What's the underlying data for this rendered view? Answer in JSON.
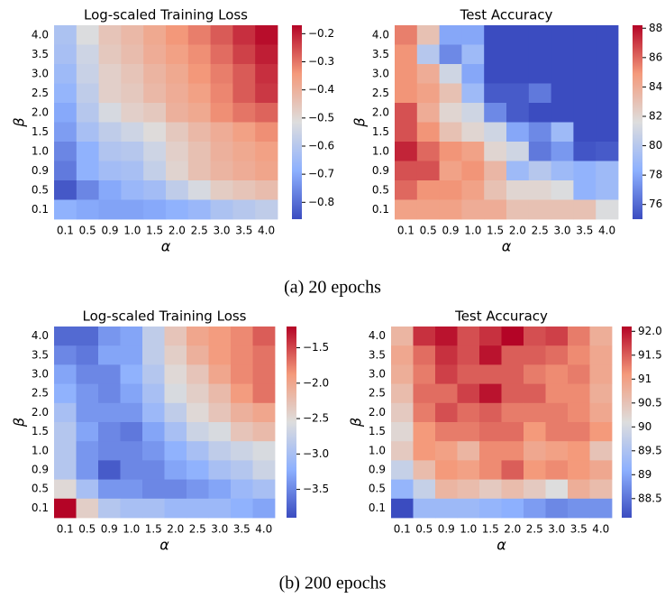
{
  "captions": [
    "(a) 20 epochs",
    "(b) 200 epochs"
  ],
  "chart_data": [
    {
      "type": "heatmap",
      "title": "Log-scaled Training Loss",
      "xlabel": "α",
      "ylabel": "β",
      "colormap": "coolwarm",
      "x_categories": [
        "0.1",
        "0.5",
        "0.9",
        "1.0",
        "1.5",
        "2.0",
        "2.5",
        "3.0",
        "3.5",
        "4.0"
      ],
      "y_categories": [
        "4.0",
        "3.5",
        "3.0",
        "2.5",
        "2.0",
        "1.5",
        "1.0",
        "0.9",
        "0.5",
        "0.1"
      ],
      "values": [
        [
          -0.62,
          -0.52,
          -0.45,
          -0.42,
          -0.38,
          -0.34,
          -0.31,
          -0.27,
          -0.22,
          -0.18
        ],
        [
          -0.63,
          -0.55,
          -0.46,
          -0.43,
          -0.39,
          -0.36,
          -0.33,
          -0.29,
          -0.24,
          -0.2
        ],
        [
          -0.65,
          -0.56,
          -0.48,
          -0.45,
          -0.41,
          -0.38,
          -0.34,
          -0.31,
          -0.27,
          -0.22
        ],
        [
          -0.67,
          -0.58,
          -0.48,
          -0.46,
          -0.42,
          -0.39,
          -0.36,
          -0.32,
          -0.27,
          -0.23
        ],
        [
          -0.7,
          -0.6,
          -0.53,
          -0.48,
          -0.46,
          -0.4,
          -0.38,
          -0.33,
          -0.3,
          -0.28
        ],
        [
          -0.72,
          -0.63,
          -0.58,
          -0.55,
          -0.51,
          -0.46,
          -0.42,
          -0.39,
          -0.36,
          -0.33
        ],
        [
          -0.76,
          -0.68,
          -0.61,
          -0.6,
          -0.55,
          -0.48,
          -0.44,
          -0.4,
          -0.38,
          -0.36
        ],
        [
          -0.78,
          -0.68,
          -0.64,
          -0.63,
          -0.57,
          -0.49,
          -0.44,
          -0.41,
          -0.39,
          -0.37
        ],
        [
          -0.84,
          -0.76,
          -0.7,
          -0.66,
          -0.64,
          -0.58,
          -0.53,
          -0.47,
          -0.45,
          -0.43
        ],
        [
          -0.68,
          -0.7,
          -0.71,
          -0.71,
          -0.7,
          -0.68,
          -0.66,
          -0.62,
          -0.6,
          -0.58
        ]
      ],
      "clim": [
        -0.86,
        -0.17
      ],
      "cticks": [
        {
          "value": -0.2,
          "label": "−0.2"
        },
        {
          "value": -0.3,
          "label": "−0.3"
        },
        {
          "value": -0.4,
          "label": "−0.4"
        },
        {
          "value": -0.5,
          "label": "−0.5"
        },
        {
          "value": -0.6,
          "label": "−0.6"
        },
        {
          "value": -0.7,
          "label": "−0.7"
        },
        {
          "value": -0.8,
          "label": "−0.8"
        }
      ]
    },
    {
      "type": "heatmap",
      "title": "Test Accuracy",
      "xlabel": "α",
      "ylabel": "β",
      "colormap": "coolwarm",
      "x_categories": [
        "0.1",
        "0.5",
        "0.9",
        "1.0",
        "1.5",
        "2.0",
        "2.5",
        "3.0",
        "3.5",
        "4.0"
      ],
      "y_categories": [
        "4.0",
        "3.5",
        "3.0",
        "2.5",
        "2.0",
        "1.5",
        "1.0",
        "0.9",
        "0.5",
        "0.1"
      ],
      "values": [
        [
          85.5,
          83,
          78,
          78,
          75,
          75,
          75,
          75,
          75,
          75
        ],
        [
          85,
          80,
          77,
          79,
          75,
          75,
          75,
          75,
          75,
          75
        ],
        [
          85,
          84,
          81,
          78,
          75,
          75,
          75,
          75,
          75,
          75
        ],
        [
          85,
          84.5,
          83,
          79,
          75.5,
          75.5,
          76.5,
          75,
          75,
          75
        ],
        [
          86.5,
          84,
          82,
          81,
          77,
          75.5,
          75,
          75,
          75,
          75
        ],
        [
          86.5,
          85,
          83,
          82,
          81,
          78,
          77,
          79,
          75,
          75
        ],
        [
          87.5,
          86,
          85,
          84.5,
          82,
          81,
          76.5,
          77.5,
          75.3,
          75.5
        ],
        [
          86.5,
          86.5,
          84.5,
          85,
          83.5,
          79,
          80,
          79,
          78.5,
          79
        ],
        [
          86,
          85,
          85,
          84.5,
          83,
          82,
          82,
          81.5,
          78.5,
          79
        ],
        [
          84.5,
          84.5,
          84.5,
          84,
          84,
          83,
          83,
          83,
          83,
          81.5
        ]
      ],
      "clim": [
        75,
        88.2
      ],
      "cticks": [
        76,
        78,
        80,
        82,
        84,
        86,
        88
      ]
    },
    {
      "type": "heatmap",
      "title": "Log-scaled Training Loss",
      "xlabel": "α",
      "ylabel": "β",
      "colormap": "coolwarm",
      "x_categories": [
        "0.1",
        "0.5",
        "0.9",
        "1.0",
        "1.5",
        "2.0",
        "2.5",
        "3.0",
        "3.5",
        "4.0"
      ],
      "y_categories": [
        "4.0",
        "3.5",
        "3.0",
        "2.5",
        "2.0",
        "1.5",
        "1.0",
        "0.9",
        "0.5",
        "0.1"
      ],
      "values": [
        [
          -3.7,
          -3.7,
          -3.4,
          -3.3,
          -2.8,
          -2.3,
          -2,
          -1.9,
          -1.8,
          -1.6
        ],
        [
          -3.5,
          -3.6,
          -3.3,
          -3.3,
          -2.8,
          -2.4,
          -2.1,
          -1.9,
          -1.8,
          -1.7
        ],
        [
          -3.3,
          -3.5,
          -3.5,
          -3.2,
          -2.9,
          -2.5,
          -2.3,
          -2,
          -1.8,
          -1.7
        ],
        [
          -3.2,
          -3.4,
          -3.5,
          -3.3,
          -3,
          -2.6,
          -2.4,
          -2.2,
          -1.9,
          -1.7
        ],
        [
          -3,
          -3.4,
          -3.4,
          -3.4,
          -3.1,
          -2.8,
          -2.5,
          -2.3,
          -2.1,
          -2
        ],
        [
          -2.9,
          -3.3,
          -3.5,
          -3.6,
          -3.3,
          -3,
          -2.7,
          -2.6,
          -2.3,
          -2.2
        ],
        [
          -2.9,
          -3.4,
          -3.5,
          -3.5,
          -3.4,
          -3.2,
          -3,
          -2.8,
          -2.7,
          -2.6
        ],
        [
          -2.9,
          -3.4,
          -3.8,
          -3.5,
          -3.5,
          -3.3,
          -3.2,
          -3,
          -2.9,
          -2.7
        ],
        [
          -2.5,
          -3,
          -3.4,
          -3.4,
          -3.5,
          -3.5,
          -3.4,
          -3.3,
          -3.1,
          -3
        ],
        [
          -1.2,
          -2.4,
          -2.9,
          -3,
          -3,
          -3.1,
          -3.1,
          -3.1,
          -3.2,
          -3.3
        ]
      ],
      "clim": [
        -3.9,
        -1.2
      ],
      "cticks": [
        {
          "value": -1.5,
          "label": "−1.5"
        },
        {
          "value": -2,
          "label": "−2.0"
        },
        {
          "value": -2.5,
          "label": "−2.5"
        },
        {
          "value": -3,
          "label": "−3.0"
        },
        {
          "value": -3.5,
          "label": "−3.5"
        }
      ]
    },
    {
      "type": "heatmap",
      "title": "Test Accuracy",
      "xlabel": "α",
      "ylabel": "β",
      "colormap": "coolwarm",
      "x_categories": [
        "0.1",
        "0.5",
        "0.9",
        "1.0",
        "1.5",
        "2.0",
        "2.5",
        "3.0",
        "3.5",
        "4.0"
      ],
      "y_categories": [
        "4.0",
        "3.5",
        "3.0",
        "2.5",
        "2.0",
        "1.5",
        "1.0",
        "0.9",
        "0.5",
        "0.1"
      ],
      "values": [
        [
          90.7,
          91.8,
          92,
          91.6,
          91.8,
          92.1,
          91.6,
          91.7,
          91.3,
          90.8
        ],
        [
          90.9,
          91.4,
          91.8,
          91.6,
          92,
          91.5,
          91.5,
          91.4,
          91.2,
          90.9
        ],
        [
          90.8,
          91.3,
          91.7,
          91.5,
          91.5,
          91.5,
          91.3,
          91.2,
          91.3,
          90.9
        ],
        [
          90.6,
          91.4,
          91.4,
          91.7,
          92,
          91.5,
          91.5,
          91.2,
          91.2,
          90.8
        ],
        [
          90.4,
          91.3,
          91.6,
          91.4,
          91.5,
          91.3,
          91.3,
          91.3,
          91.2,
          90.9
        ],
        [
          90.2,
          91.1,
          91.3,
          91.3,
          91.4,
          91.4,
          91.1,
          91.3,
          91.3,
          91.1
        ],
        [
          90.4,
          91.1,
          91,
          90.7,
          91.2,
          91.2,
          90.9,
          91,
          91.1,
          90.5
        ],
        [
          89.8,
          90.6,
          91.1,
          91,
          91.2,
          91.5,
          91.1,
          91.2,
          91.1,
          90.9
        ],
        [
          89.2,
          89.8,
          90.7,
          90.6,
          90.4,
          90.6,
          90.4,
          90.1,
          90.8,
          90.6
        ],
        [
          88.1,
          89.3,
          89.3,
          89.3,
          89.2,
          89.1,
          88.9,
          88.7,
          88.8,
          88.8
        ]
      ],
      "clim": [
        88.1,
        92.1
      ],
      "cticks": [
        88.5,
        89,
        89.5,
        90,
        90.5,
        91,
        91.5,
        {
          "value": 92,
          "label": "92.0"
        }
      ]
    }
  ]
}
